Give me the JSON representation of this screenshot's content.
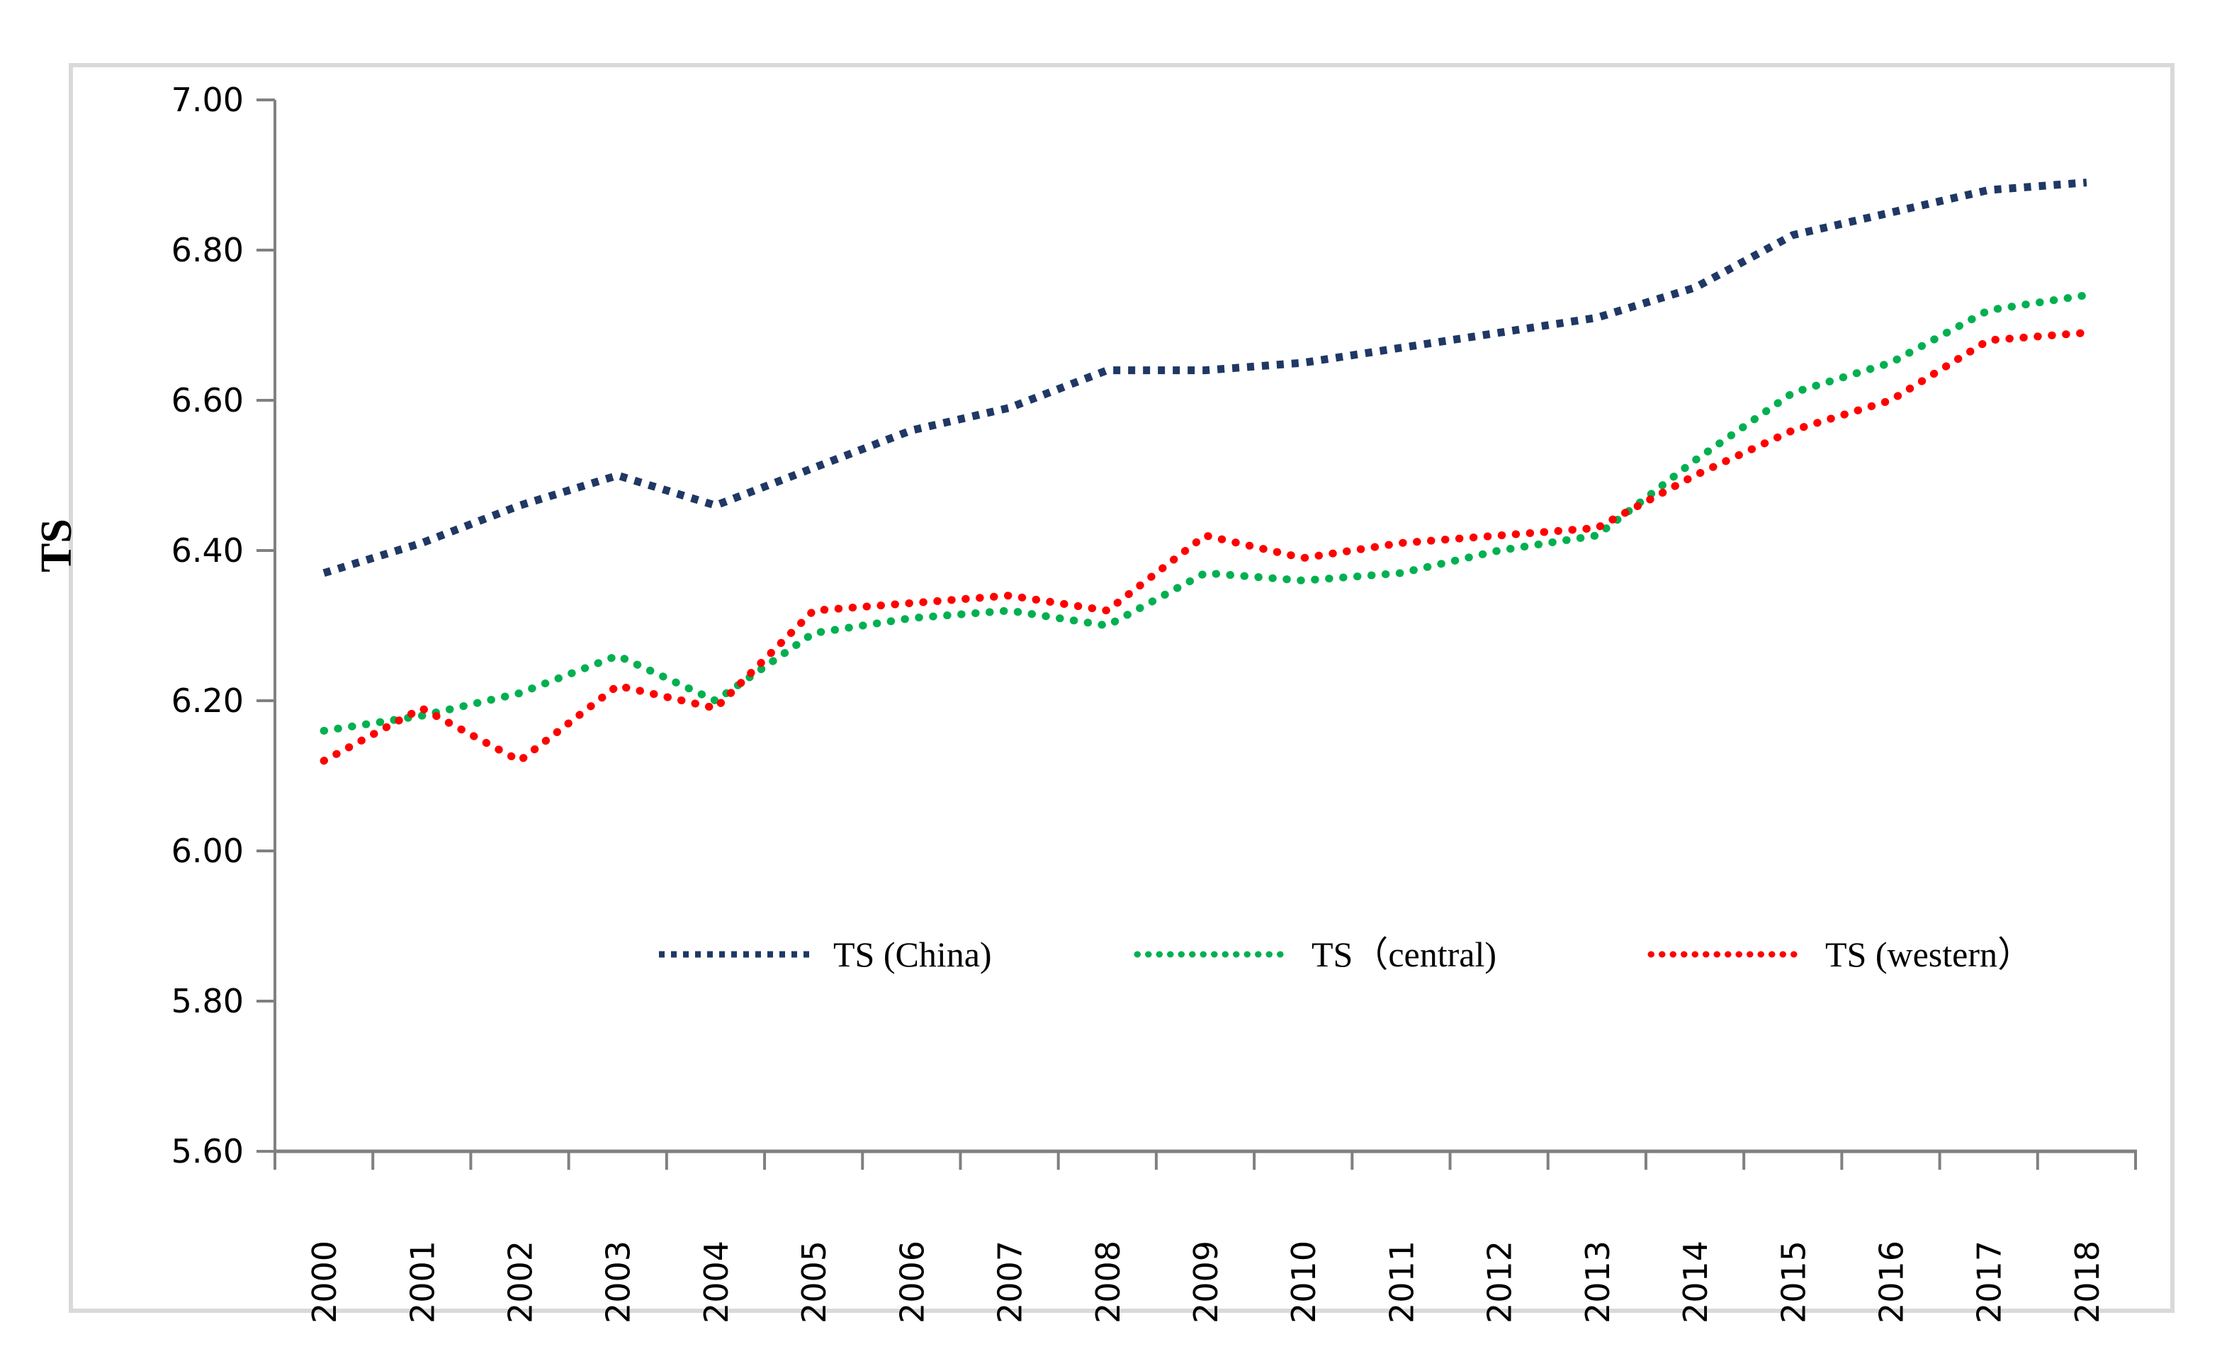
{
  "chart_data": {
    "type": "line",
    "title": "",
    "xlabel": "",
    "ylabel": "TS",
    "x": [
      2000,
      2001,
      2002,
      2003,
      2004,
      2005,
      2006,
      2007,
      2008,
      2009,
      2010,
      2011,
      2012,
      2013,
      2014,
      2015,
      2016,
      2017,
      2018
    ],
    "x_tick_labels": [
      "2000",
      "2001",
      "2002",
      "2003",
      "2004",
      "2005",
      "2006",
      "2007",
      "2008",
      "2009",
      "2010",
      "2011",
      "2012",
      "2013",
      "2014",
      "2015",
      "2016",
      "2017",
      "2018"
    ],
    "ylim": [
      5.6,
      7.0
    ],
    "ytick_step": 0.2,
    "ytick_labels": [
      "5.60",
      "5.80",
      "6.00",
      "6.20",
      "6.40",
      "6.60",
      "6.80",
      "7.00"
    ],
    "grid": false,
    "legend_position": "inside-bottom-center",
    "axis_color": "#808080",
    "frame_color": "#d9d9d9",
    "series": [
      {
        "name": "TS (China)",
        "color": "#1F3864",
        "dot_style": "square-dot",
        "values": [
          6.37,
          6.41,
          6.46,
          6.5,
          6.46,
          6.51,
          6.56,
          6.59,
          6.64,
          6.64,
          6.65,
          6.67,
          6.69,
          6.71,
          6.75,
          6.82,
          6.85,
          6.88,
          6.89
        ]
      },
      {
        "name": "TS（central)",
        "color": "#00B050",
        "dot_style": "round-dot",
        "values": [
          6.16,
          6.18,
          6.21,
          6.26,
          6.2,
          6.29,
          6.31,
          6.32,
          6.3,
          6.37,
          6.36,
          6.37,
          6.4,
          6.42,
          6.52,
          6.61,
          6.65,
          6.72,
          6.74
        ]
      },
      {
        "name": "TS (western）",
        "color": "#FF0000",
        "dot_style": "round-dot",
        "values": [
          6.12,
          6.19,
          6.12,
          6.22,
          6.19,
          6.32,
          6.33,
          6.34,
          6.32,
          6.42,
          6.39,
          6.41,
          6.42,
          6.43,
          6.5,
          6.56,
          6.6,
          6.68,
          6.69
        ]
      }
    ]
  }
}
